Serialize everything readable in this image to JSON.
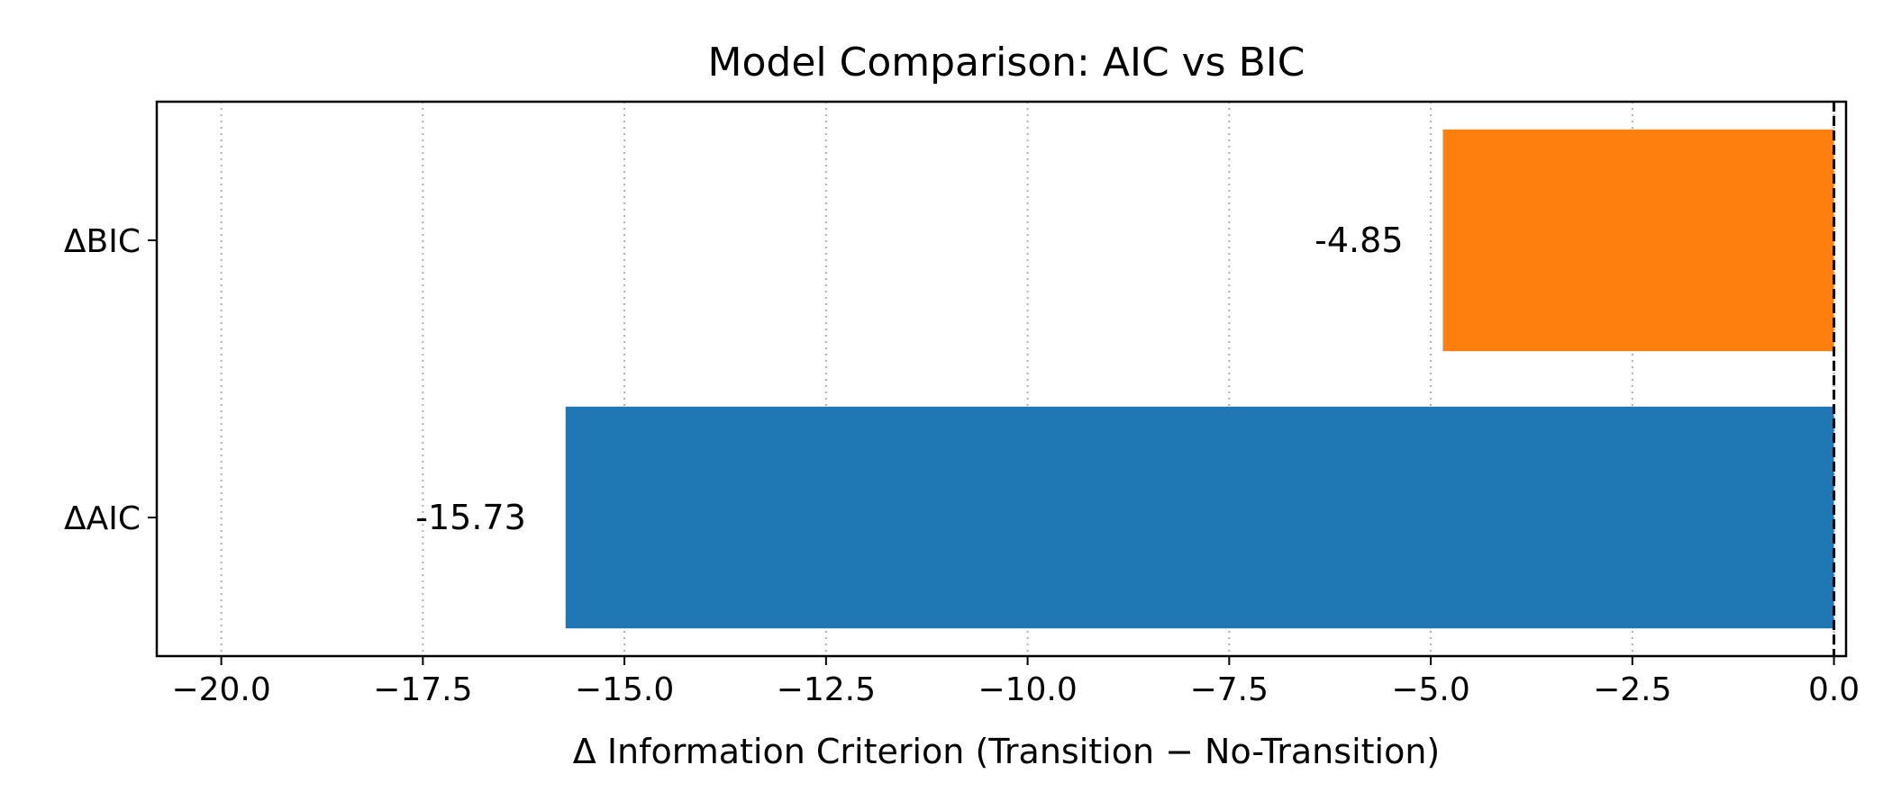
{
  "chart_data": {
    "type": "bar",
    "orientation": "horizontal",
    "title": "Model Comparison: AIC vs BIC",
    "xlabel": "Δ Information Criterion (Transition − No-Transition)",
    "ylabel": "",
    "categories": [
      "ΔAIC",
      "ΔBIC"
    ],
    "values": [
      -15.73,
      -4.85
    ],
    "value_labels": [
      "-15.73",
      "-4.85"
    ],
    "colors": [
      "#1f77b4",
      "#ff7f0e"
    ],
    "xlim": [
      -20.8,
      0.15
    ],
    "xticks": [
      -20.0,
      -17.5,
      -15.0,
      -12.5,
      -10.0,
      -7.5,
      -5.0,
      -2.5,
      0.0
    ],
    "xtick_labels": [
      "−20.0",
      "−17.5",
      "−15.0",
      "−12.5",
      "−10.0",
      "−7.5",
      "−5.0",
      "−2.5",
      "0.0"
    ],
    "grid": {
      "x": true,
      "y": false
    },
    "reference_line": {
      "x": 0,
      "style": "dashed",
      "color": "#000000"
    },
    "legend": "none"
  }
}
